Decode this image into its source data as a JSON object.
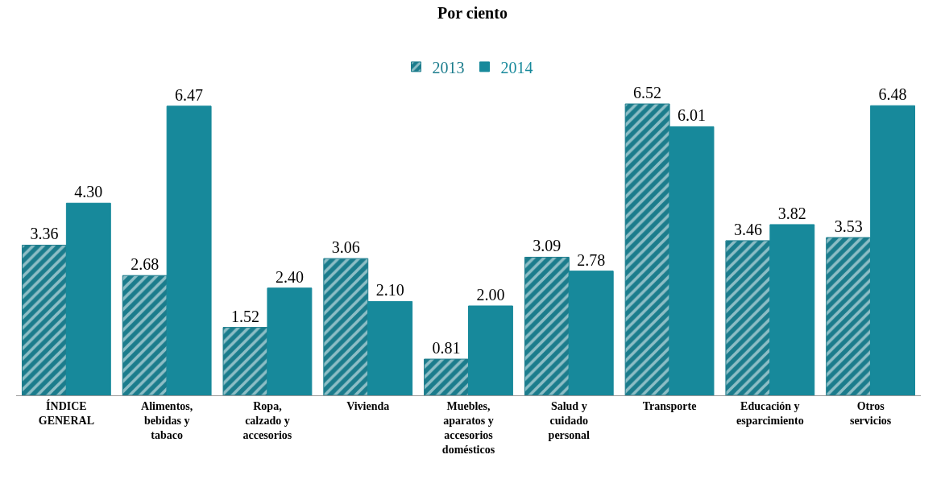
{
  "chart_data": {
    "type": "bar",
    "title": "Por ciento",
    "categories": [
      "ÍNDICE GENERAL",
      "Alimentos, bebidas y tabaco",
      "Ropa, calzado y accesorios",
      "Vivienda",
      "Muebles, aparatos y accesorios domésticos",
      "Salud y cuidado personal",
      "Transporte",
      "Educación y esparcimiento",
      "Otros servicios"
    ],
    "series": [
      {
        "name": "2013",
        "color": "#1b7c8c",
        "values": [
          3.36,
          2.68,
          1.52,
          3.06,
          0.81,
          3.09,
          6.52,
          3.46,
          3.53
        ],
        "value_labels": [
          "3.36",
          "2.68",
          "1.52",
          "3.06",
          "0.81",
          "3.09",
          "6.52",
          "3.46",
          "3.53"
        ]
      },
      {
        "name": "2014",
        "color": "#17899b",
        "values": [
          4.3,
          6.47,
          2.4,
          2.1,
          2.0,
          2.78,
          6.01,
          3.82,
          6.48
        ],
        "value_labels": [
          "4.30",
          "6.47",
          "2.40",
          "2.10",
          "2.00",
          "2.78",
          "6.01",
          "3.82",
          "6.48"
        ]
      }
    ],
    "legend": "top",
    "grid": false
  }
}
